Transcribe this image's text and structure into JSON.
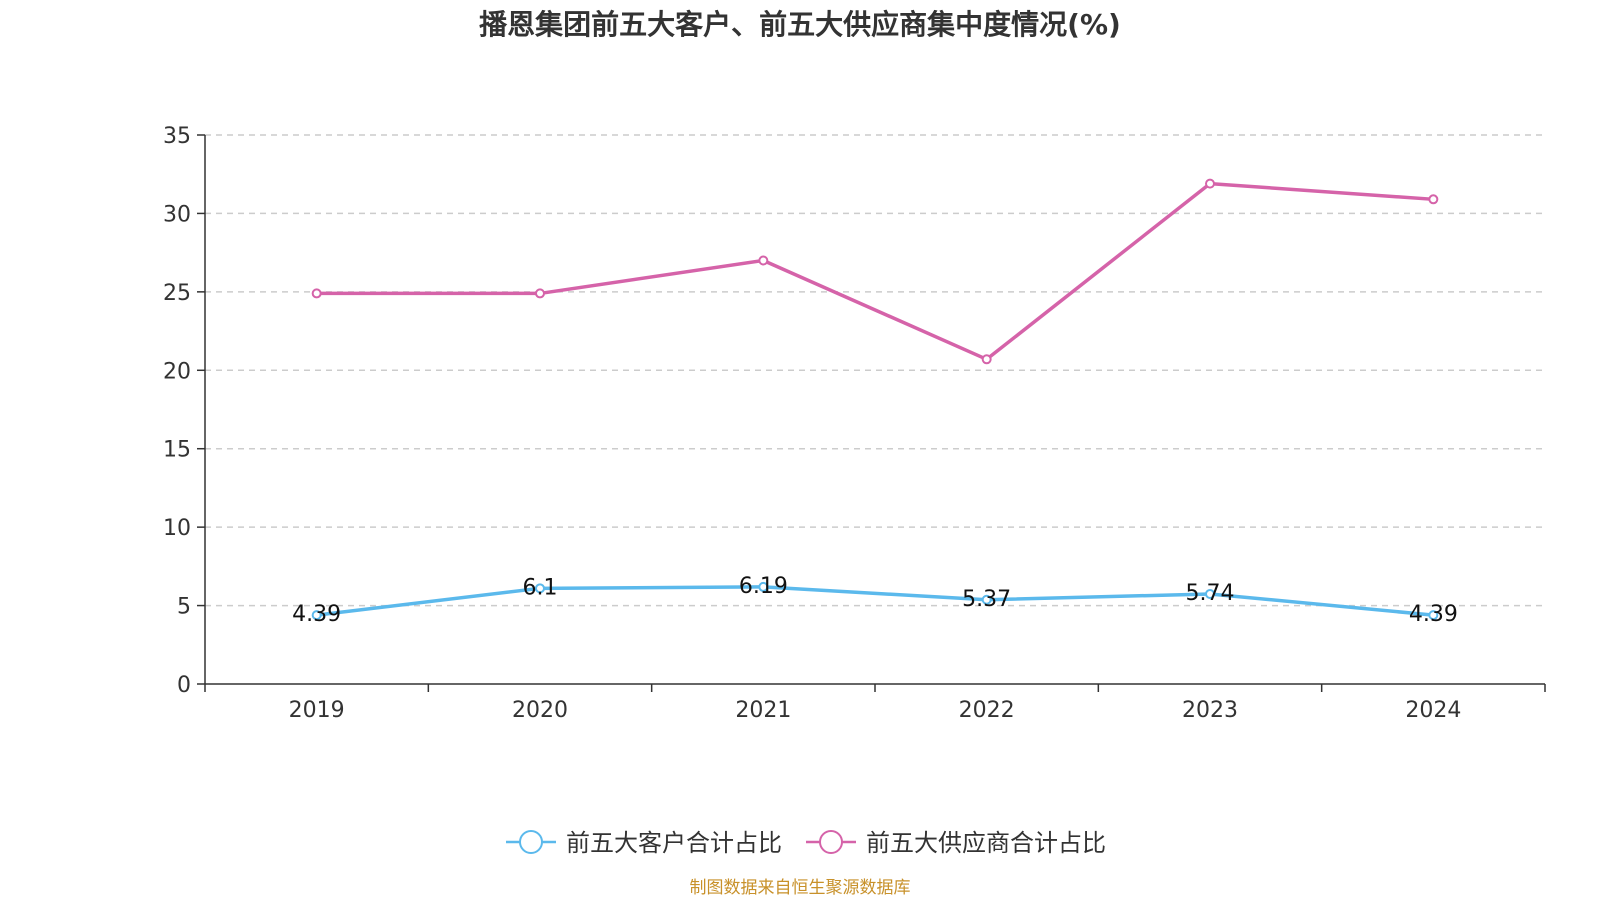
{
  "chart_data": {
    "type": "line",
    "title": "播恩集团前五大客户、前五大供应商集中度情况(%)",
    "categories": [
      "2019",
      "2020",
      "2021",
      "2022",
      "2023",
      "2024"
    ],
    "ylim": [
      0,
      35
    ],
    "yticks": [
      0,
      5,
      10,
      15,
      20,
      25,
      30,
      35
    ],
    "grid": true,
    "legend_position": "bottom",
    "series": [
      {
        "name": "前五大客户合计占比",
        "color": "#5bb9ec",
        "values": [
          4.39,
          6.1,
          6.19,
          5.37,
          5.74,
          4.39
        ],
        "labels": [
          "4.39",
          "6.1",
          "6.19",
          "5.37",
          "5.74",
          "4.39"
        ],
        "show_labels": true
      },
      {
        "name": "前五大供应商合计占比",
        "color": "#d563a9",
        "values": [
          24.9,
          24.9,
          27.0,
          20.7,
          31.9,
          30.9
        ],
        "show_labels": false
      }
    ],
    "source": "制图数据来自恒生聚源数据库"
  }
}
